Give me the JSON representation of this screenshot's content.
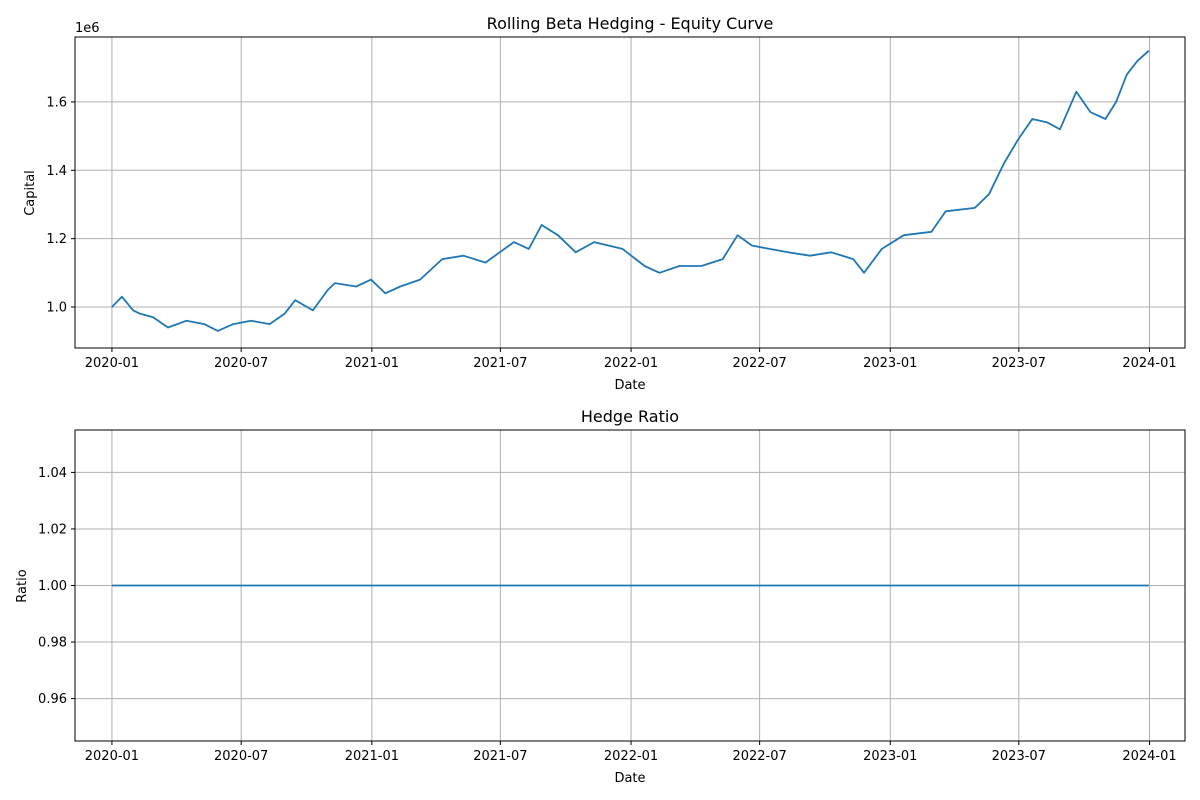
{
  "chart_data": [
    {
      "type": "line",
      "title": "Rolling Beta Hedging - Equity Curve",
      "xlabel": "Date",
      "ylabel": "Capital",
      "y_offset_label": "1e6",
      "x_ticks": [
        "2020-01",
        "2020-07",
        "2021-01",
        "2021-07",
        "2022-01",
        "2022-07",
        "2023-01",
        "2023-07",
        "2024-01"
      ],
      "y_ticks": [
        "1.0",
        "1.2",
        "1.4",
        "1.6"
      ],
      "xlim": [
        "2019-11-10",
        "2024-02-20"
      ],
      "ylim": [
        0.88,
        1.79
      ],
      "grid": true,
      "series": [
        {
          "color": "#1f77b4",
          "x": [
            "2020-01-01",
            "2020-01-15",
            "2020-01-31",
            "2020-02-10",
            "2020-02-28",
            "2020-03-20",
            "2020-04-15",
            "2020-05-10",
            "2020-05-29",
            "2020-06-20",
            "2020-07-15",
            "2020-08-10",
            "2020-08-31",
            "2020-09-15",
            "2020-10-10",
            "2020-10-31",
            "2020-11-10",
            "2020-12-10",
            "2020-12-31",
            "2021-01-20",
            "2021-02-10",
            "2021-03-10",
            "2021-04-10",
            "2021-05-10",
            "2021-06-10",
            "2021-06-30",
            "2021-07-20",
            "2021-08-10",
            "2021-08-28",
            "2021-09-20",
            "2021-10-15",
            "2021-11-10",
            "2021-11-30",
            "2021-12-20",
            "2022-01-20",
            "2022-02-10",
            "2022-03-10",
            "2022-04-10",
            "2022-05-10",
            "2022-05-31",
            "2022-06-20",
            "2022-07-15",
            "2022-08-10",
            "2022-09-10",
            "2022-10-10",
            "2022-11-10",
            "2022-11-25",
            "2022-12-20",
            "2023-01-20",
            "2023-02-28",
            "2023-03-20",
            "2023-04-30",
            "2023-05-20",
            "2023-06-10",
            "2023-06-30",
            "2023-07-20",
            "2023-08-10",
            "2023-08-28",
            "2023-09-20",
            "2023-10-10",
            "2023-10-31",
            "2023-11-15",
            "2023-11-30",
            "2023-12-15",
            "2023-12-31"
          ],
          "y": [
            1.0,
            1.03,
            0.99,
            0.98,
            0.97,
            0.94,
            0.96,
            0.95,
            0.93,
            0.95,
            0.96,
            0.95,
            0.98,
            1.02,
            0.99,
            1.05,
            1.07,
            1.06,
            1.08,
            1.04,
            1.06,
            1.08,
            1.14,
            1.15,
            1.13,
            1.16,
            1.19,
            1.17,
            1.24,
            1.21,
            1.16,
            1.19,
            1.18,
            1.17,
            1.12,
            1.1,
            1.12,
            1.12,
            1.14,
            1.21,
            1.18,
            1.17,
            1.16,
            1.15,
            1.16,
            1.14,
            1.1,
            1.17,
            1.21,
            1.22,
            1.28,
            1.29,
            1.33,
            1.42,
            1.49,
            1.55,
            1.54,
            1.52,
            1.63,
            1.57,
            1.55,
            1.6,
            1.68,
            1.72,
            1.75
          ]
        }
      ]
    },
    {
      "type": "line",
      "title": "Hedge Ratio",
      "xlabel": "Date",
      "ylabel": "Ratio",
      "x_ticks": [
        "2020-01",
        "2020-07",
        "2021-01",
        "2021-07",
        "2022-01",
        "2022-07",
        "2023-01",
        "2023-07",
        "2024-01"
      ],
      "y_ticks": [
        "0.96",
        "0.98",
        "1.00",
        "1.02",
        "1.04"
      ],
      "xlim": [
        "2019-11-10",
        "2024-02-20"
      ],
      "ylim": [
        0.945,
        1.055
      ],
      "grid": true,
      "series": [
        {
          "color": "#1f77b4",
          "x": [
            "2020-01-01",
            "2023-12-31"
          ],
          "y": [
            1.0,
            1.0
          ]
        }
      ]
    }
  ]
}
